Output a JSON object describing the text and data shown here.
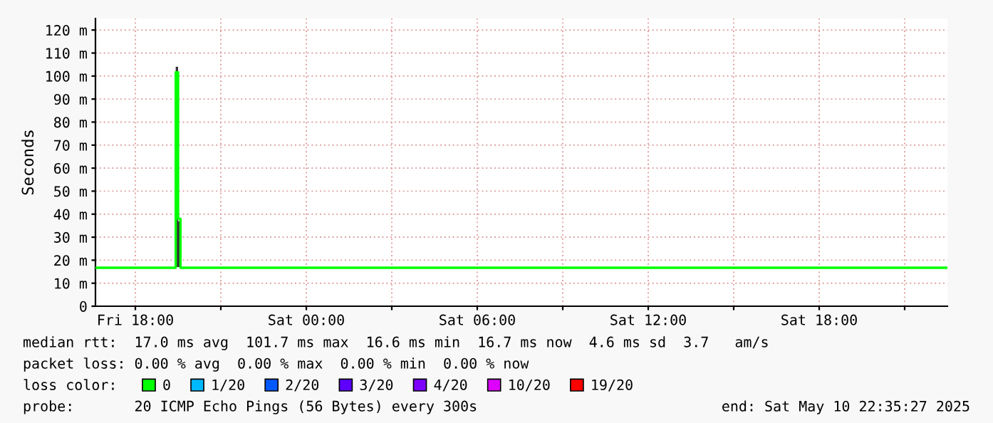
{
  "chart_data": {
    "type": "step",
    "ylabel": "Seconds",
    "x": [
      "2025-05-09T16:36",
      "2025-05-09T19:20",
      "2025-05-09T19:25",
      "2025-05-09T19:30",
      "2025-05-09T19:35",
      "2025-05-10T22:30"
    ],
    "series": [
      {
        "name": "0",
        "color": "#00ff00",
        "values": [
          16.7,
          16.7,
          101.7,
          38,
          16.7,
          16.7
        ],
        "lower": [
          16.7,
          16.7,
          17,
          17,
          16.7,
          16.7
        ],
        "upper": [
          16.7,
          16.7,
          104,
          37,
          16.7,
          16.7
        ]
      },
      {
        "name": "1/20",
        "color": "#00b8ff",
        "values": [
          null,
          null,
          null,
          null,
          null,
          null
        ]
      },
      {
        "name": "2/20",
        "color": "#0059ff",
        "values": [
          null,
          null,
          null,
          null,
          null,
          null
        ]
      },
      {
        "name": "3/20",
        "color": "#5e00ff",
        "values": [
          null,
          null,
          null,
          null,
          null,
          null
        ]
      },
      {
        "name": "4/20",
        "color": "#7e00ff",
        "values": [
          null,
          null,
          null,
          null,
          null,
          null
        ]
      },
      {
        "name": "10/20",
        "color": "#dd00ff",
        "values": [
          null,
          null,
          null,
          null,
          null,
          null
        ]
      },
      {
        "name": "19/20",
        "color": "#ff0000",
        "values": [
          null,
          null,
          null,
          null,
          null,
          null
        ]
      }
    ],
    "xlim": [
      "2025-05-09T16:36",
      "2025-05-10T22:30"
    ],
    "xticks": [
      {
        "value": "2025-05-09T18:00",
        "label": "Fri 18:00"
      },
      {
        "value": "2025-05-09T21:00",
        "label": null
      },
      {
        "value": "2025-05-10T00:00",
        "label": "Sat 00:00"
      },
      {
        "value": "2025-05-10T03:00",
        "label": null
      },
      {
        "value": "2025-05-10T06:00",
        "label": "Sat 06:00"
      },
      {
        "value": "2025-05-10T09:00",
        "label": null
      },
      {
        "value": "2025-05-10T12:00",
        "label": "Sat 12:00"
      },
      {
        "value": "2025-05-10T15:00",
        "label": null
      },
      {
        "value": "2025-05-10T18:00",
        "label": "Sat 18:00"
      },
      {
        "value": "2025-05-10T21:00",
        "label": null
      }
    ],
    "ylim": [
      0,
      125
    ],
    "yticks": [
      0,
      {
        "value": 10,
        "label": "10 m"
      },
      {
        "value": 20,
        "label": "20 m"
      },
      {
        "value": 30,
        "label": "30 m"
      },
      {
        "value": 40,
        "label": "40 m"
      },
      {
        "value": 50,
        "label": "50 m"
      },
      {
        "value": 60,
        "label": "60 m"
      },
      {
        "value": 70,
        "label": "70 m"
      },
      {
        "value": 80,
        "label": "80 m"
      },
      {
        "value": 90,
        "label": "90 m"
      },
      {
        "value": 100,
        "label": "100 m"
      },
      {
        "value": 110,
        "label": "110 m"
      },
      {
        "value": 120,
        "label": "120 m"
      }
    ],
    "grid": true,
    "legend": "bottom",
    "legend_title": "loss color:",
    "annotations": [
      "median rtt:  17.0 ms avg  101.7 ms max  16.6 ms min  16.7 ms now  4.6 ms sd  3.7   am/s",
      "packet loss: 0.00 % avg  0.00 % max  0.00 % min  0.00 % now",
      "probe:       20 ICMP Echo Pings (56 Bytes) every 300s",
      "end: Sat May 10 22:35:27 2025"
    ]
  }
}
